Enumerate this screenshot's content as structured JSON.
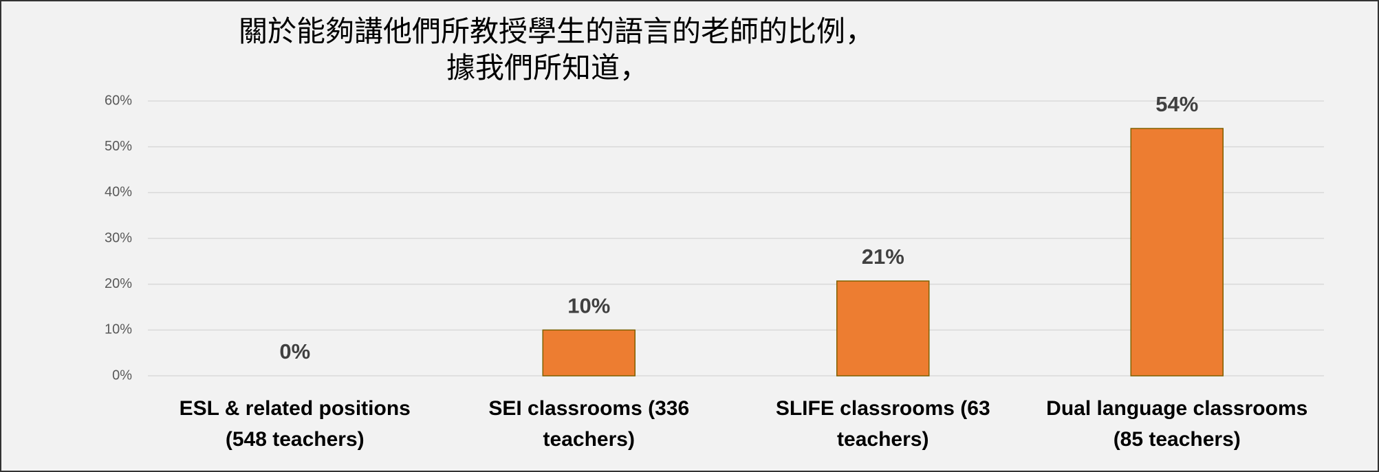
{
  "chart_data": {
    "type": "bar",
    "title": [
      "關於能夠講他們所教授學生的語言的老師的比例，",
      "據我們所知道，"
    ],
    "categories": [
      [
        "ESL  & related positions",
        "(548 teachers)"
      ],
      [
        "SEI classrooms (336",
        "teachers)"
      ],
      [
        "SLIFE classrooms (63",
        "teachers)"
      ],
      [
        "Dual language classrooms",
        "(85 teachers)"
      ]
    ],
    "values": [
      0,
      10,
      20.7,
      54
    ],
    "value_labels": [
      "0%",
      "10%",
      "21%",
      "54%"
    ],
    "color": "#ed7d31",
    "ylim": [
      0,
      60
    ],
    "yticks": [
      {
        "value": 0,
        "label": "0%"
      },
      {
        "value": 10,
        "label": "10%"
      },
      {
        "value": 20,
        "label": "20%"
      },
      {
        "value": 30,
        "label": "30%"
      },
      {
        "value": 40,
        "label": "40%"
      },
      {
        "value": 50,
        "label": "50%"
      },
      {
        "value": 60,
        "label": "60%"
      }
    ],
    "grid": true
  }
}
